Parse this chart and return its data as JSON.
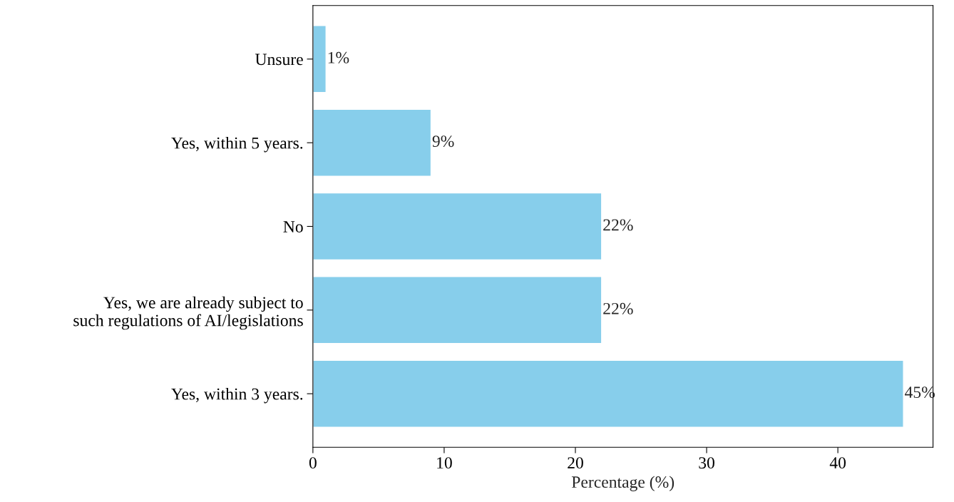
{
  "chart_data": {
    "type": "bar",
    "orientation": "horizontal",
    "xlabel": "Percentage (%)",
    "categories": [
      "Unsure",
      "Yes, within 5 years.",
      "No",
      "Yes, we are already subject to\nsuch regulations of AI/legislations",
      "Yes, within 3 years."
    ],
    "values": [
      1,
      9,
      22,
      22,
      45
    ],
    "value_labels": [
      "1%",
      "9%",
      "22%",
      "22%",
      "45%"
    ],
    "color": "#87ceeb",
    "xlim": [
      0,
      47.25
    ],
    "xticks": [
      0,
      10,
      20,
      30,
      40
    ],
    "grid": false
  }
}
